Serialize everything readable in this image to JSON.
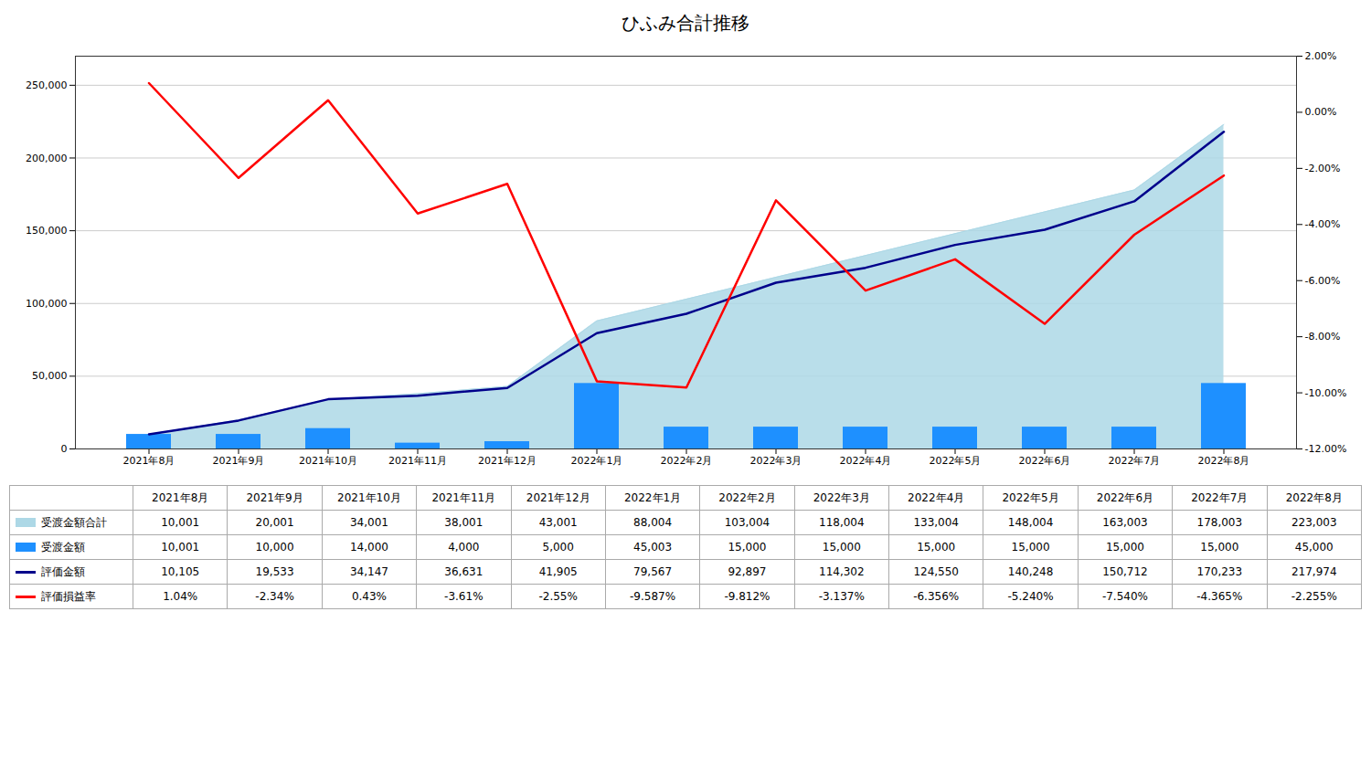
{
  "chart_data": {
    "type": "combo",
    "title": "ひふみ合計推移",
    "categories": [
      "2021年8月",
      "2021年9月",
      "2021年10月",
      "2021年11月",
      "2021年12月",
      "2022年1月",
      "2022年2月",
      "2022年3月",
      "2022年4月",
      "2022年5月",
      "2022年6月",
      "2022年7月",
      "2022年8月"
    ],
    "series": [
      {
        "name": "受渡金額合計",
        "type": "area",
        "color": "#ADD8E6",
        "values": [
          10001,
          20001,
          34001,
          38001,
          43001,
          88004,
          103004,
          118004,
          133004,
          148004,
          163003,
          178003,
          223003
        ],
        "value_labels": [
          "10,001",
          "20,001",
          "34,001",
          "38,001",
          "43,001",
          "88,004",
          "103,004",
          "118,004",
          "133,004",
          "148,004",
          "163,003",
          "178,003",
          "223,003"
        ]
      },
      {
        "name": "受渡金額",
        "type": "bar",
        "color": "#1E90FF",
        "values": [
          10001,
          10000,
          14000,
          4000,
          5000,
          45003,
          15000,
          15000,
          15000,
          15000,
          15000,
          15000,
          45000
        ],
        "value_labels": [
          "10,001",
          "10,000",
          "14,000",
          "4,000",
          "5,000",
          "45,003",
          "15,000",
          "15,000",
          "15,000",
          "15,000",
          "15,000",
          "15,000",
          "45,000"
        ]
      },
      {
        "name": "評価金額",
        "type": "line",
        "color": "#00008B",
        "values": [
          10105,
          19533,
          34147,
          36631,
          41905,
          79567,
          92897,
          114302,
          124550,
          140248,
          150712,
          170233,
          217974
        ],
        "value_labels": [
          "10,105",
          "19,533",
          "34,147",
          "36,631",
          "41,905",
          "79,567",
          "92,897",
          "114,302",
          "124,550",
          "140,248",
          "150,712",
          "170,233",
          "217,974"
        ]
      },
      {
        "name": "評価損益率",
        "type": "line",
        "axis": "y2",
        "color": "#FF0000",
        "values": [
          0.0104,
          -0.0234,
          0.0043,
          -0.0361,
          -0.0255,
          -0.09587,
          -0.09812,
          -0.03137,
          -0.06356,
          -0.0524,
          -0.0754,
          -0.04365,
          -0.02255
        ],
        "value_labels": [
          "1.04%",
          "-2.34%",
          "0.43%",
          "-3.61%",
          "-2.55%",
          "-9.587%",
          "-9.812%",
          "-3.137%",
          "-6.356%",
          "-5.240%",
          "-7.540%",
          "-4.365%",
          "-2.255%"
        ]
      }
    ],
    "ylim": [
      0,
      270000
    ],
    "yticks": [
      0,
      {
        "value": 50000,
        "label": "50,000"
      },
      {
        "value": 100000,
        "label": "100,000"
      },
      {
        "value": 150000,
        "label": "150,000"
      },
      {
        "value": 200000,
        "label": "200,000"
      },
      {
        "value": 250000,
        "label": "250,000"
      }
    ],
    "y2lim": [
      -0.12,
      0.02
    ],
    "y2ticks": [
      {
        "value": -0.12,
        "label": "-12.00%"
      },
      {
        "value": -0.1,
        "label": "-10.00%"
      },
      {
        "value": -0.08,
        "label": "-8.00%"
      },
      {
        "value": -0.06,
        "label": "-6.00%"
      },
      {
        "value": -0.04,
        "label": "-4.00%"
      },
      {
        "value": -0.02,
        "label": "-2.00%"
      },
      {
        "value": 0,
        "label": "0.00%"
      },
      {
        "value": 0.02,
        "label": "2.00%"
      }
    ],
    "grid": true,
    "legend": "bottom",
    "data_labels": true
  }
}
